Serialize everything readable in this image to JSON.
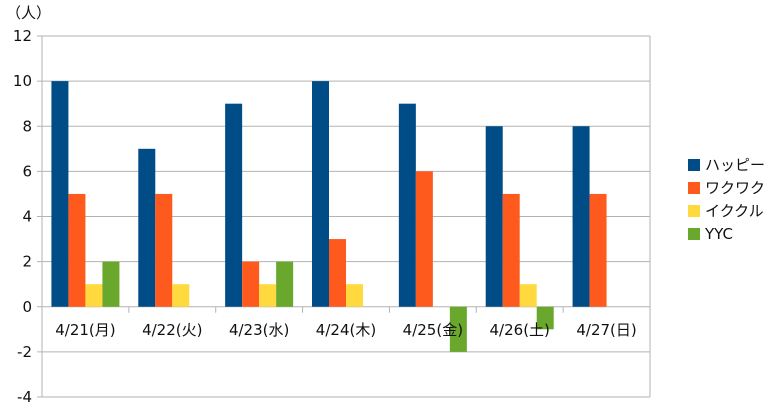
{
  "chart_data": {
    "type": "bar",
    "unit_label": "（人）",
    "categories": [
      "4/21(月)",
      "4/22(火)",
      "4/23(水)",
      "4/24(木)",
      "4/25(金)",
      "4/26(土)",
      "4/27(日)"
    ],
    "series": [
      {
        "name": "ハッピー",
        "color": "#004c86",
        "values": [
          10,
          7,
          9,
          10,
          9,
          8,
          8
        ]
      },
      {
        "name": "ワクワク",
        "color": "#ff5a1d",
        "values": [
          5,
          5,
          2,
          3,
          6,
          5,
          5
        ]
      },
      {
        "name": "イククル",
        "color": "#ffd93d",
        "values": [
          1,
          1,
          1,
          1,
          0,
          1,
          0
        ]
      },
      {
        "name": "YYC",
        "color": "#6aa72d",
        "values": [
          2,
          0,
          2,
          0,
          -2,
          -1,
          0
        ]
      }
    ],
    "ylim": [
      -4,
      12
    ],
    "yticks": [
      -4,
      -2,
      0,
      2,
      4,
      6,
      8,
      10,
      12
    ],
    "grid": true,
    "legend_position": "right"
  }
}
